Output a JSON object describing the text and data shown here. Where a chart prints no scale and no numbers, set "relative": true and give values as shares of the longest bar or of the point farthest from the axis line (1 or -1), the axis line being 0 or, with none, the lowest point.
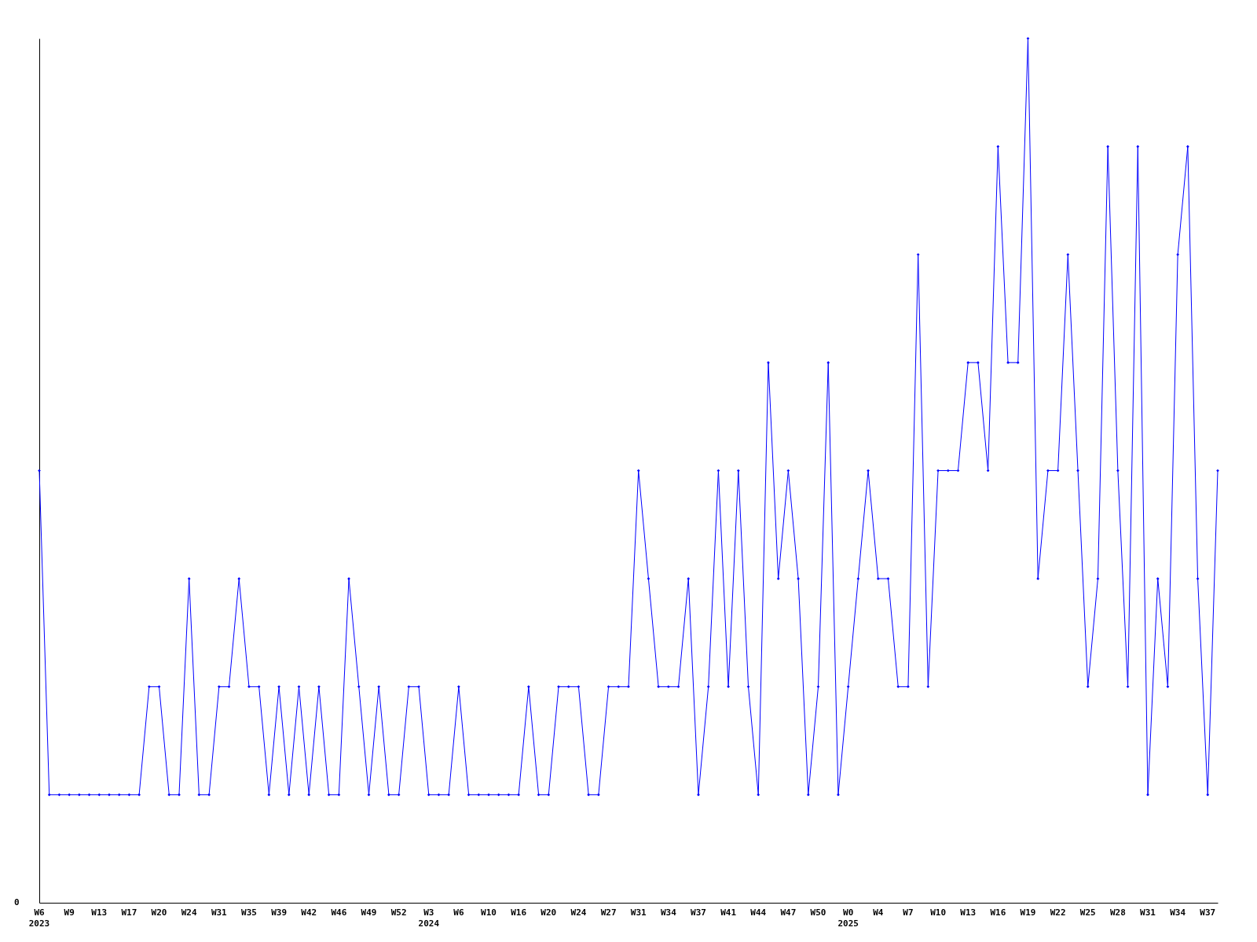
{
  "chart_data": {
    "type": "line",
    "relative": true,
    "marker": "diamond",
    "line_style": "solid",
    "annotations": [
      "0"
    ],
    "categories": [
      "W6\n2023",
      null,
      null,
      "W9",
      null,
      null,
      "W13",
      null,
      null,
      "W17",
      null,
      null,
      "W20",
      null,
      null,
      "W24",
      null,
      null,
      "W31",
      null,
      null,
      "W35",
      null,
      null,
      "W39",
      null,
      null,
      "W42",
      null,
      null,
      "W46",
      null,
      null,
      "W49",
      null,
      null,
      "W52",
      null,
      null,
      "W3\n2024",
      null,
      null,
      "W6",
      null,
      null,
      "W10",
      null,
      null,
      "W16",
      null,
      null,
      "W20",
      null,
      null,
      "W24",
      null,
      null,
      "W27",
      null,
      null,
      "W31",
      null,
      null,
      "W34",
      null,
      null,
      "W37",
      null,
      null,
      "W41",
      null,
      null,
      "W44",
      null,
      null,
      "W47",
      null,
      null,
      "W50",
      null,
      null,
      "W0\n2025",
      null,
      null,
      "W4",
      null,
      null,
      "W7",
      null,
      null,
      "W10",
      null,
      null,
      "W13",
      null,
      null,
      "W16",
      null,
      null,
      "W19",
      null,
      null,
      "W22",
      null,
      null,
      "W25",
      null,
      null,
      "W28",
      null,
      null,
      "W31",
      null,
      null,
      "W34",
      null,
      null,
      "W37",
      null
    ],
    "series": [
      {
        "color": "#0000ff",
        "values": [
          0.5,
          0.125,
          0.125,
          0.125,
          0.125,
          0.125,
          0.125,
          0.125,
          0.125,
          0.125,
          0.125,
          0.25,
          0.25,
          0.125,
          0.125,
          0.375,
          0.125,
          0.125,
          0.25,
          0.25,
          0.375,
          0.25,
          0.25,
          0.125,
          0.25,
          0.125,
          0.25,
          0.125,
          0.25,
          0.125,
          0.125,
          0.375,
          0.25,
          0.125,
          0.25,
          0.125,
          0.125,
          0.25,
          0.25,
          0.125,
          0.125,
          0.125,
          0.25,
          0.125,
          0.125,
          0.125,
          0.125,
          0.125,
          0.125,
          0.25,
          0.125,
          0.125,
          0.25,
          0.25,
          0.25,
          0.125,
          0.125,
          0.25,
          0.25,
          0.25,
          0.5,
          0.375,
          0.25,
          0.25,
          0.25,
          0.375,
          0.125,
          0.25,
          0.5,
          0.25,
          0.5,
          0.25,
          0.125,
          0.625,
          0.375,
          0.5,
          0.375,
          0.125,
          0.25,
          0.625,
          0.125,
          0.25,
          0.375,
          0.5,
          0.375,
          0.375,
          0.25,
          0.25,
          0.75,
          0.25,
          0.5,
          0.5,
          0.5,
          0.625,
          0.625,
          0.5,
          0.875,
          0.625,
          0.625,
          1,
          0.375,
          0.5,
          0.5,
          0.75,
          0.5,
          0.25,
          0.375,
          0.875,
          0.5,
          0.25,
          0.875,
          0.125,
          0.375,
          0.25,
          0.75,
          0.875,
          0.375,
          0.125,
          0.5
        ]
      }
    ]
  }
}
